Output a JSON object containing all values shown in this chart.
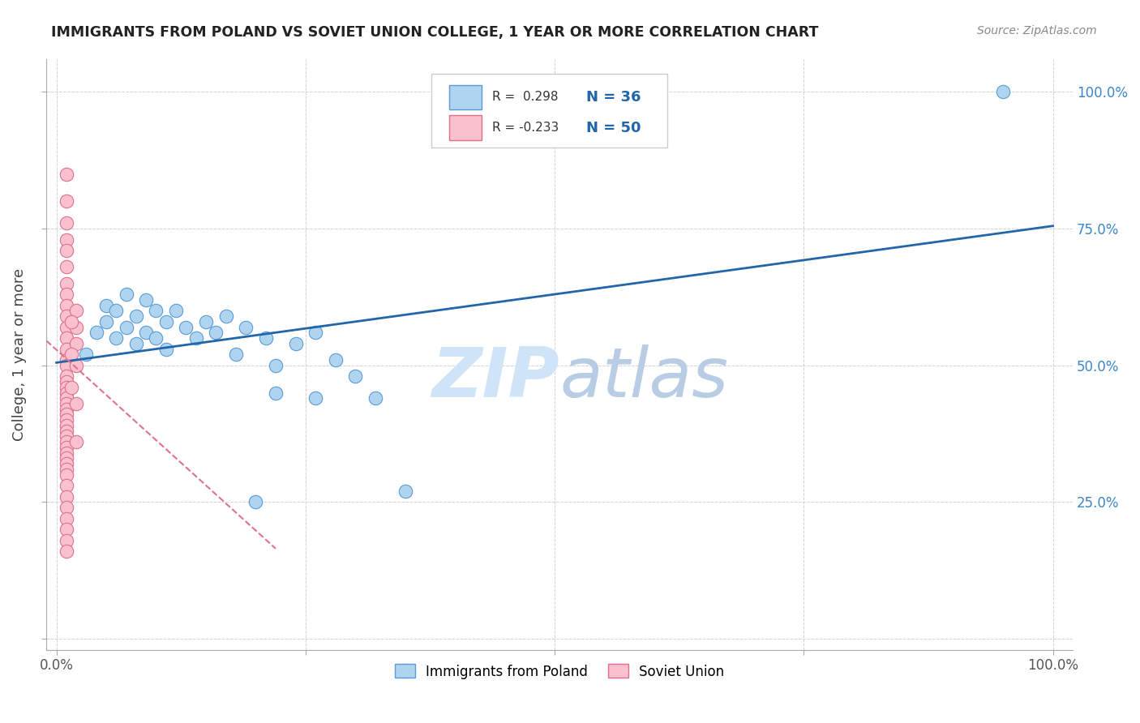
{
  "title": "IMMIGRANTS FROM POLAND VS SOVIET UNION COLLEGE, 1 YEAR OR MORE CORRELATION CHART",
  "source_text": "Source: ZipAtlas.com",
  "ylabel": "College, 1 year or more",
  "poland_color": "#aed4f0",
  "poland_edge_color": "#5b9bd5",
  "soviet_color": "#f9c0ce",
  "soviet_edge_color": "#e07090",
  "trend_blue_color": "#2266aa",
  "trend_pink_color": "#e07090",
  "watermark_color": "#d0e4f7",
  "legend_r_poland": "R =  0.298",
  "legend_n_poland": "N = 36",
  "legend_r_soviet": "R = -0.233",
  "legend_n_soviet": "N = 50",
  "xlim": [
    -0.01,
    1.02
  ],
  "ylim": [
    -0.02,
    1.06
  ],
  "poland_scatter_x": [
    0.03,
    0.04,
    0.05,
    0.05,
    0.06,
    0.06,
    0.07,
    0.07,
    0.08,
    0.08,
    0.09,
    0.09,
    0.1,
    0.1,
    0.11,
    0.11,
    0.12,
    0.13,
    0.14,
    0.15,
    0.16,
    0.17,
    0.19,
    0.21,
    0.24,
    0.26,
    0.18,
    0.22,
    0.28,
    0.3,
    0.22,
    0.26,
    0.2,
    0.35,
    0.95,
    0.32
  ],
  "poland_scatter_y": [
    0.52,
    0.56,
    0.58,
    0.61,
    0.55,
    0.6,
    0.57,
    0.63,
    0.54,
    0.59,
    0.56,
    0.62,
    0.55,
    0.6,
    0.53,
    0.58,
    0.6,
    0.57,
    0.55,
    0.58,
    0.56,
    0.59,
    0.57,
    0.55,
    0.54,
    0.56,
    0.52,
    0.5,
    0.51,
    0.48,
    0.45,
    0.44,
    0.25,
    0.27,
    1.0,
    0.44
  ],
  "soviet_scatter_x": [
    0.01,
    0.01,
    0.01,
    0.01,
    0.01,
    0.01,
    0.01,
    0.01,
    0.01,
    0.01,
    0.01,
    0.01,
    0.01,
    0.01,
    0.01,
    0.01,
    0.01,
    0.01,
    0.01,
    0.01,
    0.01,
    0.01,
    0.01,
    0.01,
    0.01,
    0.01,
    0.01,
    0.01,
    0.01,
    0.01,
    0.01,
    0.01,
    0.01,
    0.01,
    0.01,
    0.01,
    0.01,
    0.01,
    0.01,
    0.01,
    0.01,
    0.02,
    0.02,
    0.02,
    0.02,
    0.02,
    0.02,
    0.015,
    0.015,
    0.015
  ],
  "soviet_scatter_y": [
    0.85,
    0.8,
    0.76,
    0.73,
    0.71,
    0.68,
    0.65,
    0.63,
    0.61,
    0.59,
    0.57,
    0.55,
    0.53,
    0.51,
    0.5,
    0.48,
    0.47,
    0.46,
    0.45,
    0.44,
    0.43,
    0.42,
    0.41,
    0.4,
    0.39,
    0.38,
    0.37,
    0.36,
    0.35,
    0.34,
    0.33,
    0.32,
    0.31,
    0.3,
    0.28,
    0.26,
    0.24,
    0.22,
    0.2,
    0.18,
    0.16,
    0.36,
    0.43,
    0.5,
    0.54,
    0.57,
    0.6,
    0.46,
    0.52,
    0.58
  ],
  "blue_trend_x": [
    0.0,
    1.0
  ],
  "blue_trend_y": [
    0.505,
    0.755
  ],
  "pink_trend_x": [
    -0.01,
    0.22
  ],
  "pink_trend_y": [
    0.545,
    0.165
  ]
}
